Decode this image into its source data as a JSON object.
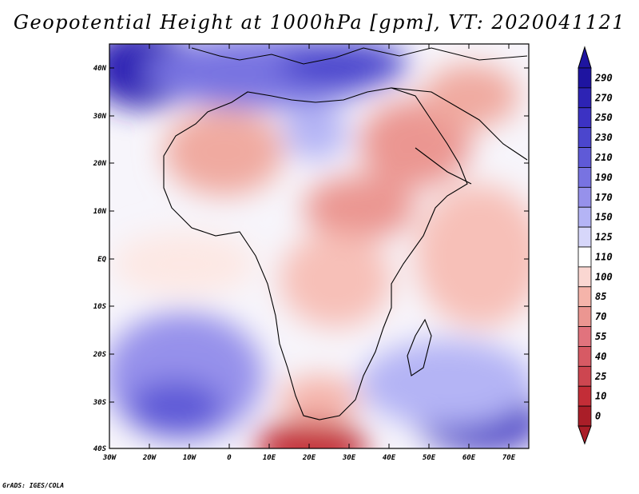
{
  "title": "Geopotential Height at 1000hPa [gpm], VT: 2020041121",
  "credit": "GrADS: IGES/COLA",
  "map": {
    "lat_labels": [
      "40N",
      "30N",
      "20N",
      "10N",
      "EQ",
      "10S",
      "20S",
      "30S",
      "40S"
    ],
    "lon_labels": [
      "30W",
      "20W",
      "10W",
      "0",
      "10E",
      "20E",
      "30E",
      "40E",
      "50E",
      "60E",
      "70E"
    ],
    "lon_range": [
      -30,
      75
    ],
    "lat_range": [
      -40,
      44
    ]
  },
  "colorbar": {
    "labels": [
      "290",
      "270",
      "250",
      "230",
      "210",
      "190",
      "170",
      "150",
      "125",
      "110",
      "100",
      "85",
      "70",
      "55",
      "40",
      "25",
      "10",
      "0"
    ],
    "colors": [
      "#1e14a0",
      "#2d23b4",
      "#3c32c3",
      "#4b46cd",
      "#5f5ad7",
      "#7873e1",
      "#9691eb",
      "#b4b4f5",
      "#d7d7fa",
      "#ffffff",
      "#fad7d2",
      "#f5b4aa",
      "#eb9691",
      "#e1737d",
      "#d75a64",
      "#cd4650",
      "#c32d37",
      "#aa1e28"
    ]
  }
}
